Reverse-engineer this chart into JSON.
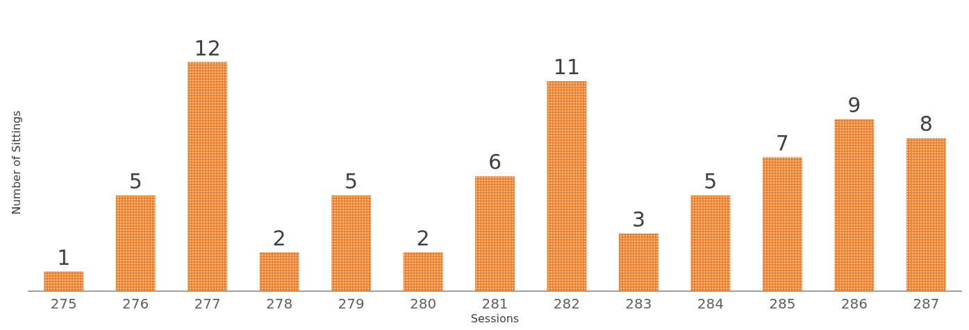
{
  "chart_data": {
    "type": "bar",
    "xlabel": "Sessions",
    "ylabel": "Number of Sittings",
    "categories": [
      "275",
      "276",
      "277",
      "278",
      "279",
      "280",
      "281",
      "282",
      "283",
      "284",
      "285",
      "286",
      "287"
    ],
    "values": [
      1,
      5,
      12,
      2,
      5,
      2,
      6,
      11,
      3,
      5,
      7,
      9,
      8
    ],
    "color": "#f07f2a",
    "data_labels": true,
    "tick_labels": "x"
  }
}
